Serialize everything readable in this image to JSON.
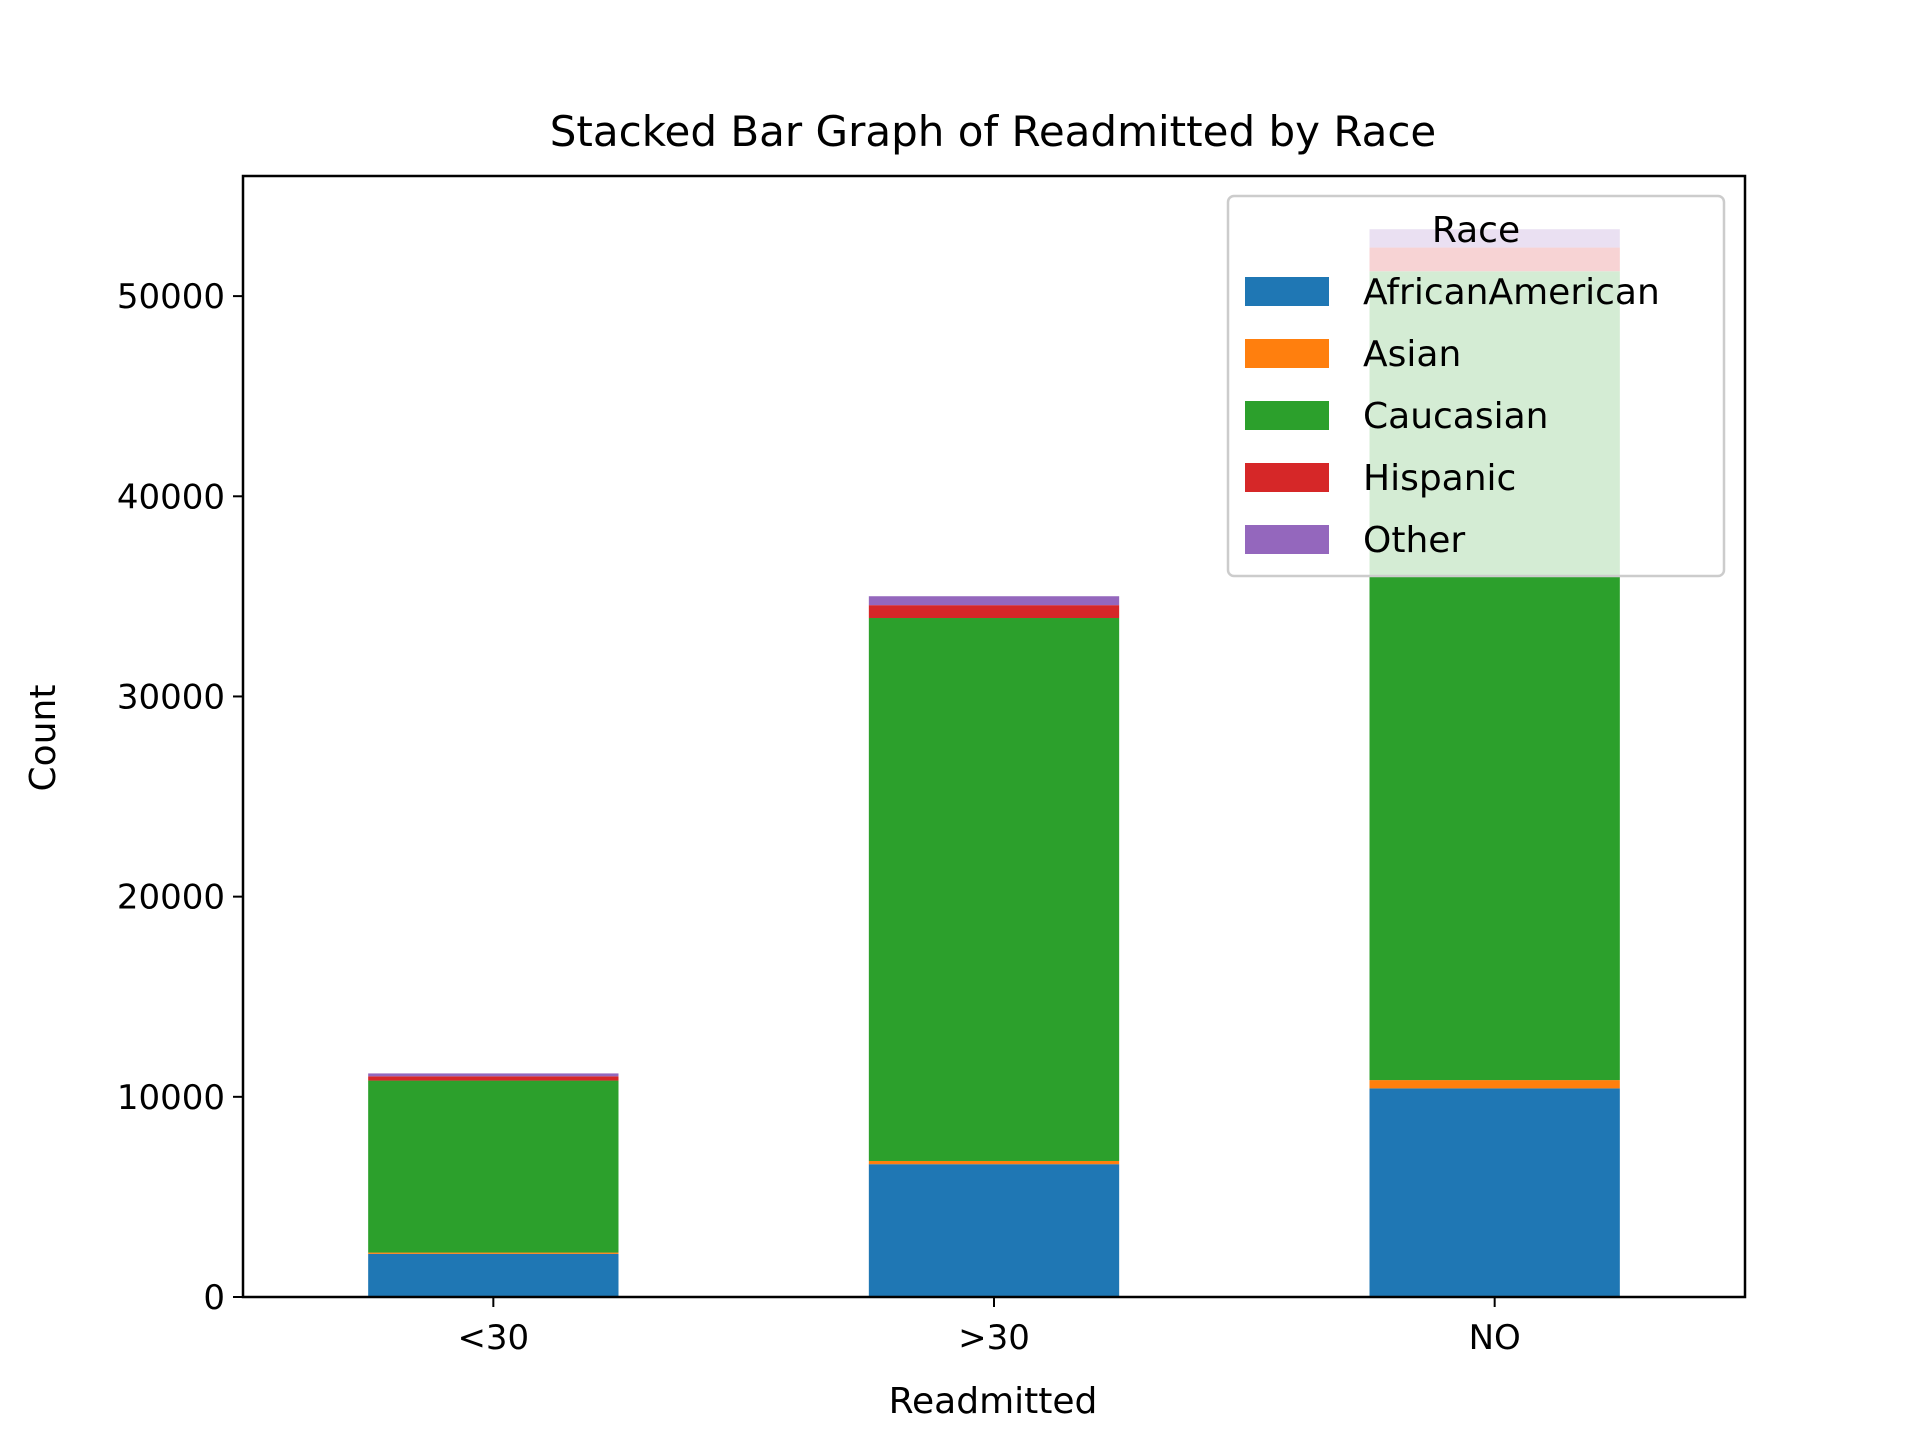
{
  "chart_data": {
    "type": "bar",
    "stacked": true,
    "title": "Stacked Bar Graph of Readmitted by Race",
    "xlabel": "Readmitted",
    "ylabel": "Count",
    "categories": [
      "<30",
      ">30",
      "NO"
    ],
    "ylim": [
      0,
      56000
    ],
    "yticks": [
      0,
      10000,
      20000,
      30000,
      40000,
      50000
    ],
    "grid": false,
    "legend": {
      "title": "Race",
      "position": "top-right"
    },
    "series": [
      {
        "name": "AfricanAmerican",
        "color": "#1f77b4",
        "values": [
          2155,
          6634,
          10421
        ]
      },
      {
        "name": "Asian",
        "color": "#ff7f0e",
        "values": [
          65,
          161,
          415
        ]
      },
      {
        "name": "Caucasian",
        "color": "#2ca02c",
        "values": [
          8592,
          27124,
          40407
        ]
      },
      {
        "name": "Hispanic",
        "color": "#d62728",
        "values": [
          212,
          642,
          1183
        ]
      },
      {
        "name": "Other",
        "color": "#9467bd",
        "values": [
          145,
          446,
          915
        ]
      }
    ]
  }
}
